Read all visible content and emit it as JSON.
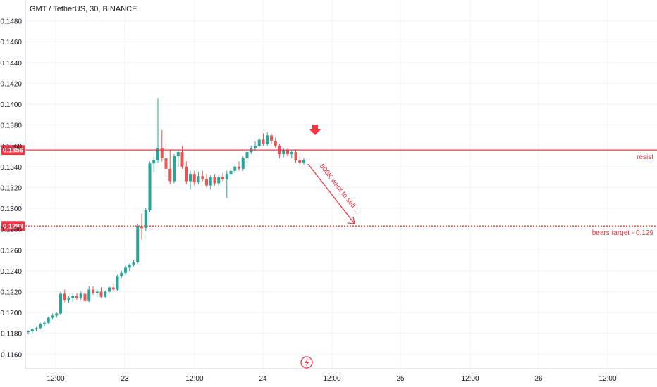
{
  "header": {
    "title": "GMT / TetherUS, 30, BINANCE"
  },
  "chart_data": {
    "type": "candlestick",
    "symbol": "GMT / TetherUS",
    "interval": "30",
    "exchange": "BINANCE",
    "ylim": [
      0.1146,
      0.15
    ],
    "y_ticks": [
      "0.1160",
      "0.1180",
      "0.1200",
      "0.1220",
      "0.1240",
      "0.1260",
      "0.1280",
      "0.1300",
      "0.1320",
      "0.1340",
      "0.1360",
      "0.1380",
      "0.1400",
      "0.1420",
      "0.1440",
      "0.1460",
      "0.1480"
    ],
    "x_ticks": [
      "12:00",
      "23",
      "12:00",
      "24",
      "12:00",
      "25",
      "12:00",
      "26",
      "12:00"
    ],
    "grid": true,
    "colors": {
      "up": "#26a69a",
      "down": "#ef5350",
      "annotation": "#f23645",
      "grid": "#f0f3fa",
      "axis_text": "#131722"
    },
    "candles": [
      [
        0.1181,
        0.1183,
        0.1179,
        0.1182
      ],
      [
        0.1182,
        0.1185,
        0.118,
        0.1184
      ],
      [
        0.1184,
        0.1186,
        0.1182,
        0.1185
      ],
      [
        0.1185,
        0.119,
        0.1184,
        0.1189
      ],
      [
        0.1189,
        0.1192,
        0.1187,
        0.119
      ],
      [
        0.119,
        0.1196,
        0.1189,
        0.1195
      ],
      [
        0.1195,
        0.1199,
        0.1193,
        0.1197
      ],
      [
        0.1197,
        0.12,
        0.1195,
        0.1199
      ],
      [
        0.1199,
        0.122,
        0.1198,
        0.1218
      ],
      [
        0.1218,
        0.1222,
        0.121,
        0.1212
      ],
      [
        0.1212,
        0.1216,
        0.1209,
        0.1214
      ],
      [
        0.1214,
        0.1218,
        0.121,
        0.1216
      ],
      [
        0.1216,
        0.1219,
        0.1212,
        0.1214
      ],
      [
        0.1214,
        0.122,
        0.1212,
        0.1218
      ],
      [
        0.1218,
        0.1221,
        0.121,
        0.1211
      ],
      [
        0.1211,
        0.1225,
        0.121,
        0.1222
      ],
      [
        0.1222,
        0.1225,
        0.1217,
        0.1219
      ],
      [
        0.1219,
        0.1222,
        0.1215,
        0.122
      ],
      [
        0.122,
        0.1224,
        0.1214,
        0.1215
      ],
      [
        0.1215,
        0.1221,
        0.1214,
        0.122
      ],
      [
        0.122,
        0.1225,
        0.1219,
        0.1224
      ],
      [
        0.1224,
        0.1228,
        0.1221,
        0.1222
      ],
      [
        0.1222,
        0.1236,
        0.1221,
        0.1235
      ],
      [
        0.1235,
        0.124,
        0.1233,
        0.1238
      ],
      [
        0.1238,
        0.1245,
        0.1236,
        0.1243
      ],
      [
        0.1243,
        0.1247,
        0.124,
        0.1246
      ],
      [
        0.1246,
        0.125,
        0.1244,
        0.1248
      ],
      [
        0.1248,
        0.1285,
        0.1247,
        0.1283
      ],
      [
        0.1283,
        0.1295,
        0.127,
        0.1281
      ],
      [
        0.1281,
        0.13,
        0.1278,
        0.1298
      ],
      [
        0.1298,
        0.1345,
        0.1296,
        0.1343
      ],
      [
        0.1343,
        0.135,
        0.1335,
        0.1346
      ],
      [
        0.1346,
        0.1406,
        0.1344,
        0.1358
      ],
      [
        0.1358,
        0.1375,
        0.1345,
        0.1348
      ],
      [
        0.1348,
        0.1362,
        0.133,
        0.1338
      ],
      [
        0.1338,
        0.1356,
        0.1323,
        0.1326
      ],
      [
        0.1326,
        0.1352,
        0.1324,
        0.135
      ],
      [
        0.135,
        0.1356,
        0.134,
        0.1354
      ],
      [
        0.1354,
        0.136,
        0.1338,
        0.134
      ],
      [
        0.134,
        0.1345,
        0.1323,
        0.1326
      ],
      [
        0.1326,
        0.1336,
        0.1318,
        0.1333
      ],
      [
        0.1333,
        0.1336,
        0.1322,
        0.1325
      ],
      [
        0.1325,
        0.1335,
        0.1323,
        0.1331
      ],
      [
        0.1331,
        0.1336,
        0.1326,
        0.1328
      ],
      [
        0.1328,
        0.1333,
        0.132,
        0.1322
      ],
      [
        0.1322,
        0.1332,
        0.1318,
        0.133
      ],
      [
        0.133,
        0.1333,
        0.1322,
        0.1324
      ],
      [
        0.1324,
        0.1332,
        0.1321,
        0.133
      ],
      [
        0.133,
        0.1334,
        0.1326,
        0.1328
      ],
      [
        0.1328,
        0.1336,
        0.131,
        0.1333
      ],
      [
        0.1333,
        0.1338,
        0.133,
        0.1336
      ],
      [
        0.1336,
        0.1342,
        0.1334,
        0.134
      ],
      [
        0.134,
        0.1345,
        0.1336,
        0.1338
      ],
      [
        0.1338,
        0.135,
        0.1336,
        0.1348
      ],
      [
        0.1348,
        0.1356,
        0.134,
        0.1354
      ],
      [
        0.1354,
        0.136,
        0.1352,
        0.1358
      ],
      [
        0.1358,
        0.1364,
        0.1355,
        0.136
      ],
      [
        0.136,
        0.1368,
        0.1358,
        0.1366
      ],
      [
        0.1366,
        0.1372,
        0.136,
        0.1362
      ],
      [
        0.1362,
        0.1373,
        0.136,
        0.137
      ],
      [
        0.137,
        0.1372,
        0.1362,
        0.1365
      ],
      [
        0.1365,
        0.1368,
        0.1358,
        0.136
      ],
      [
        0.136,
        0.1362,
        0.1348,
        0.1352
      ],
      [
        0.1352,
        0.1358,
        0.1349,
        0.1356
      ],
      [
        0.1356,
        0.1358,
        0.135,
        0.1352
      ],
      [
        0.1352,
        0.1356,
        0.1348,
        0.1354
      ],
      [
        0.1354,
        0.1356,
        0.1344,
        0.1346
      ],
      [
        0.1346,
        0.135,
        0.1342,
        0.1344
      ],
      [
        0.1344,
        0.1348,
        0.1342,
        0.1346
      ]
    ],
    "horizontal_lines": [
      {
        "price": 0.1356,
        "label": "0.1356",
        "annotation": "resist",
        "style": "solid"
      },
      {
        "price": 0.1283,
        "label": "0.1283",
        "annotation": "bears target - 0.129",
        "style": "dotted"
      }
    ],
    "arrow_text": "500K want to sell ..."
  }
}
